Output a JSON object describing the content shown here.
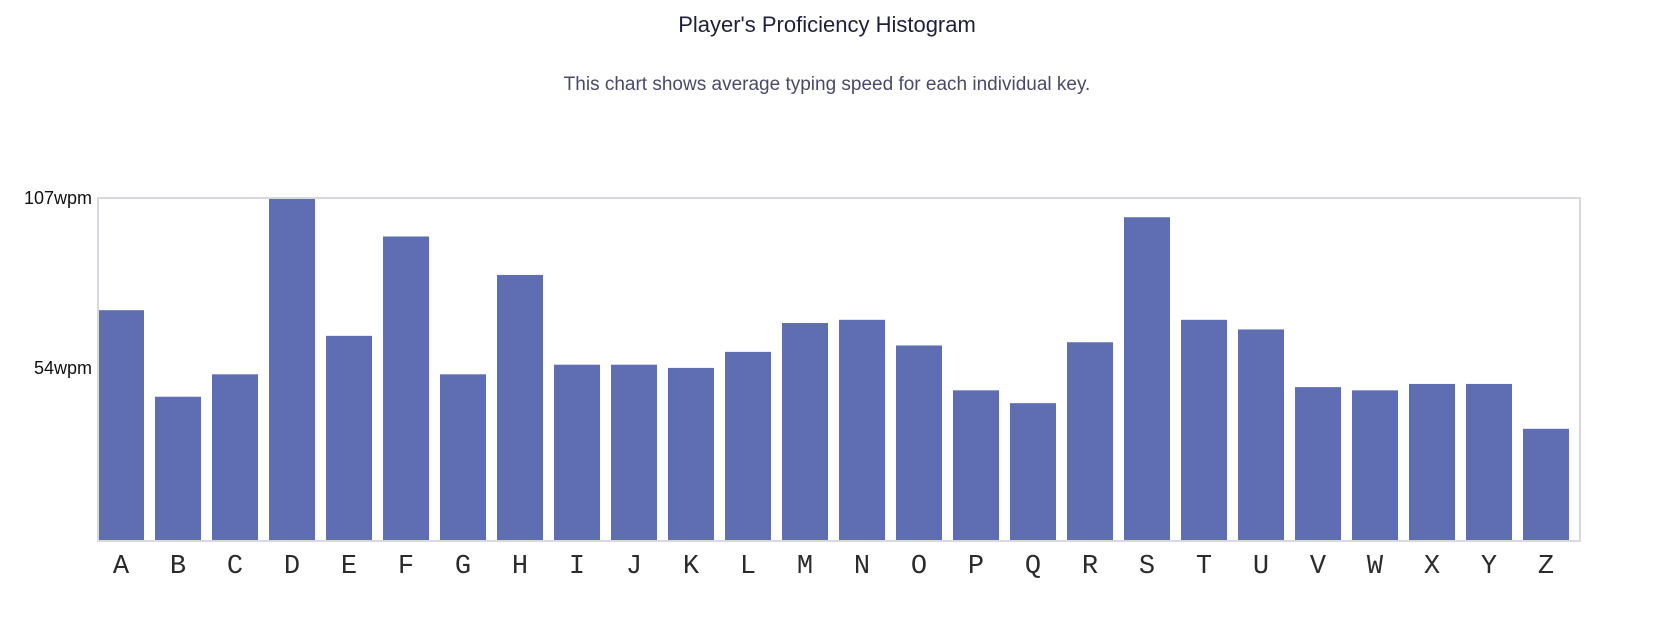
{
  "chart_data": {
    "type": "bar",
    "title": "Player's Proficiency Histogram",
    "subtitle": "This chart shows average typing speed for each individual key.",
    "categories": [
      "A",
      "B",
      "C",
      "D",
      "E",
      "F",
      "G",
      "H",
      "I",
      "J",
      "K",
      "L",
      "M",
      "N",
      "O",
      "P",
      "Q",
      "R",
      "S",
      "T",
      "U",
      "V",
      "W",
      "X",
      "Y",
      "Z"
    ],
    "values": [
      72,
      45,
      52,
      107,
      64,
      95,
      52,
      83,
      55,
      55,
      54,
      59,
      68,
      69,
      61,
      47,
      43,
      62,
      101,
      69,
      66,
      48,
      47,
      49,
      49,
      35
    ],
    "ylim": [
      0,
      107
    ],
    "yticks": [
      {
        "value": 107,
        "label": "107wpm"
      },
      {
        "value": 54,
        "label": "54wpm"
      }
    ],
    "xlabel": "",
    "ylabel": "",
    "grid": false,
    "legend": "none",
    "bar_color": "#5f6db3"
  }
}
